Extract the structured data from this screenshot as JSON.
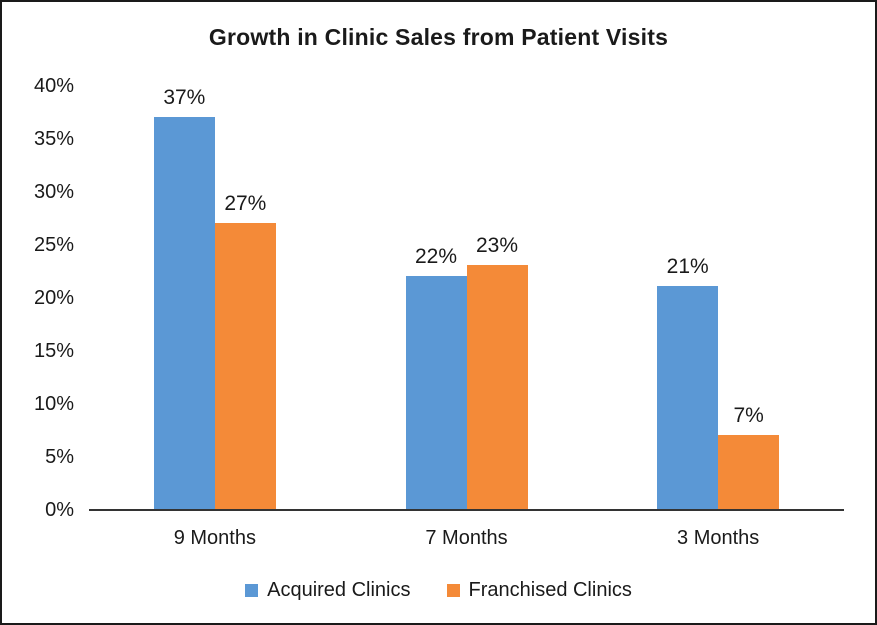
{
  "title": "Growth in Clinic Sales from Patient Visits",
  "chart_data": {
    "type": "bar",
    "title": "Growth in Clinic Sales from Patient Visits",
    "categories": [
      "9 Months",
      "7 Months",
      "3 Months"
    ],
    "series": [
      {
        "name": "Acquired Clinics",
        "color": "#5B98D5",
        "values": [
          37,
          22,
          21
        ],
        "labels": [
          "37%",
          "22%",
          "21%"
        ]
      },
      {
        "name": "Franchised Clinics",
        "color": "#F48A38",
        "values": [
          27,
          23,
          7
        ],
        "labels": [
          "27%",
          "23%",
          "7%"
        ]
      }
    ],
    "ylim": [
      0,
      40
    ],
    "yticks": [
      {
        "label": "0%",
        "value": 0
      },
      {
        "label": "5%",
        "value": 5
      },
      {
        "label": "10%",
        "value": 10
      },
      {
        "label": "15%",
        "value": 15
      },
      {
        "label": "20%",
        "value": 20
      },
      {
        "label": "25%",
        "value": 25
      },
      {
        "label": "30%",
        "value": 30
      },
      {
        "label": "35%",
        "value": 35
      },
      {
        "label": "40%",
        "value": 40
      }
    ],
    "grid": false,
    "legend_position": "bottom",
    "xlabel": "",
    "ylabel": ""
  },
  "legend": {
    "items": [
      {
        "label": "Acquired Clinics",
        "color": "#5B98D5"
      },
      {
        "label": "Franchised Clinics",
        "color": "#F48A38"
      }
    ]
  },
  "colors": {
    "axis_line": "#333333",
    "text": "#1a1a1a",
    "background": "#ffffff",
    "border": "#1a1a1a"
  }
}
